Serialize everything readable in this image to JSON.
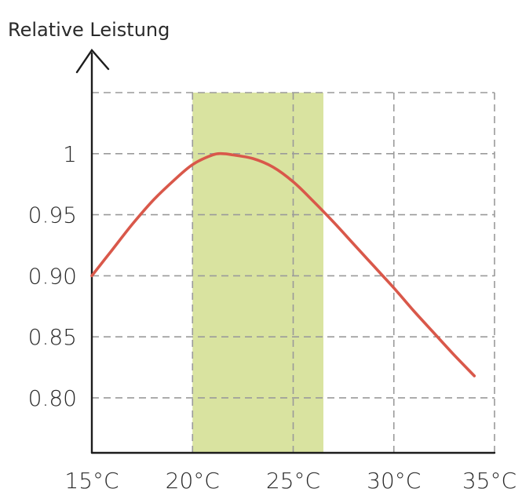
{
  "chart_data": {
    "type": "line",
    "title": "",
    "xlabel": "",
    "ylabel": "Relative Leistung",
    "xlim": [
      15,
      35
    ],
    "ylim": [
      0.755,
      1.05
    ],
    "x_ticks": [
      {
        "value": 15,
        "label": "15°C"
      },
      {
        "value": 20,
        "label": "20°C"
      },
      {
        "value": 25,
        "label": "25°C"
      },
      {
        "value": 30,
        "label": "30°C"
      },
      {
        "value": 35,
        "label": "35°C"
      }
    ],
    "y_ticks": [
      {
        "value": 1.0,
        "label": "1"
      },
      {
        "value": 0.95,
        "label": "0.95"
      },
      {
        "value": 0.9,
        "label": "0.90"
      },
      {
        "value": 0.85,
        "label": "0.85"
      },
      {
        "value": 0.8,
        "label": "0.80"
      }
    ],
    "highlight_band": {
      "x_start": 20,
      "x_end": 26.5,
      "color": "#d9e3a0"
    },
    "grid": true,
    "series": [
      {
        "color": "#d9584a",
        "x": [
          15,
          16,
          17,
          18,
          19,
          20,
          21,
          21.5,
          22,
          23,
          24,
          25,
          26,
          27,
          28,
          29,
          30,
          31,
          32,
          33,
          34
        ],
        "y": [
          0.9,
          0.921,
          0.942,
          0.961,
          0.977,
          0.991,
          0.999,
          1.0,
          0.999,
          0.996,
          0.989,
          0.977,
          0.961,
          0.944,
          0.926,
          0.908,
          0.89,
          0.871,
          0.853,
          0.835,
          0.818
        ]
      }
    ]
  }
}
